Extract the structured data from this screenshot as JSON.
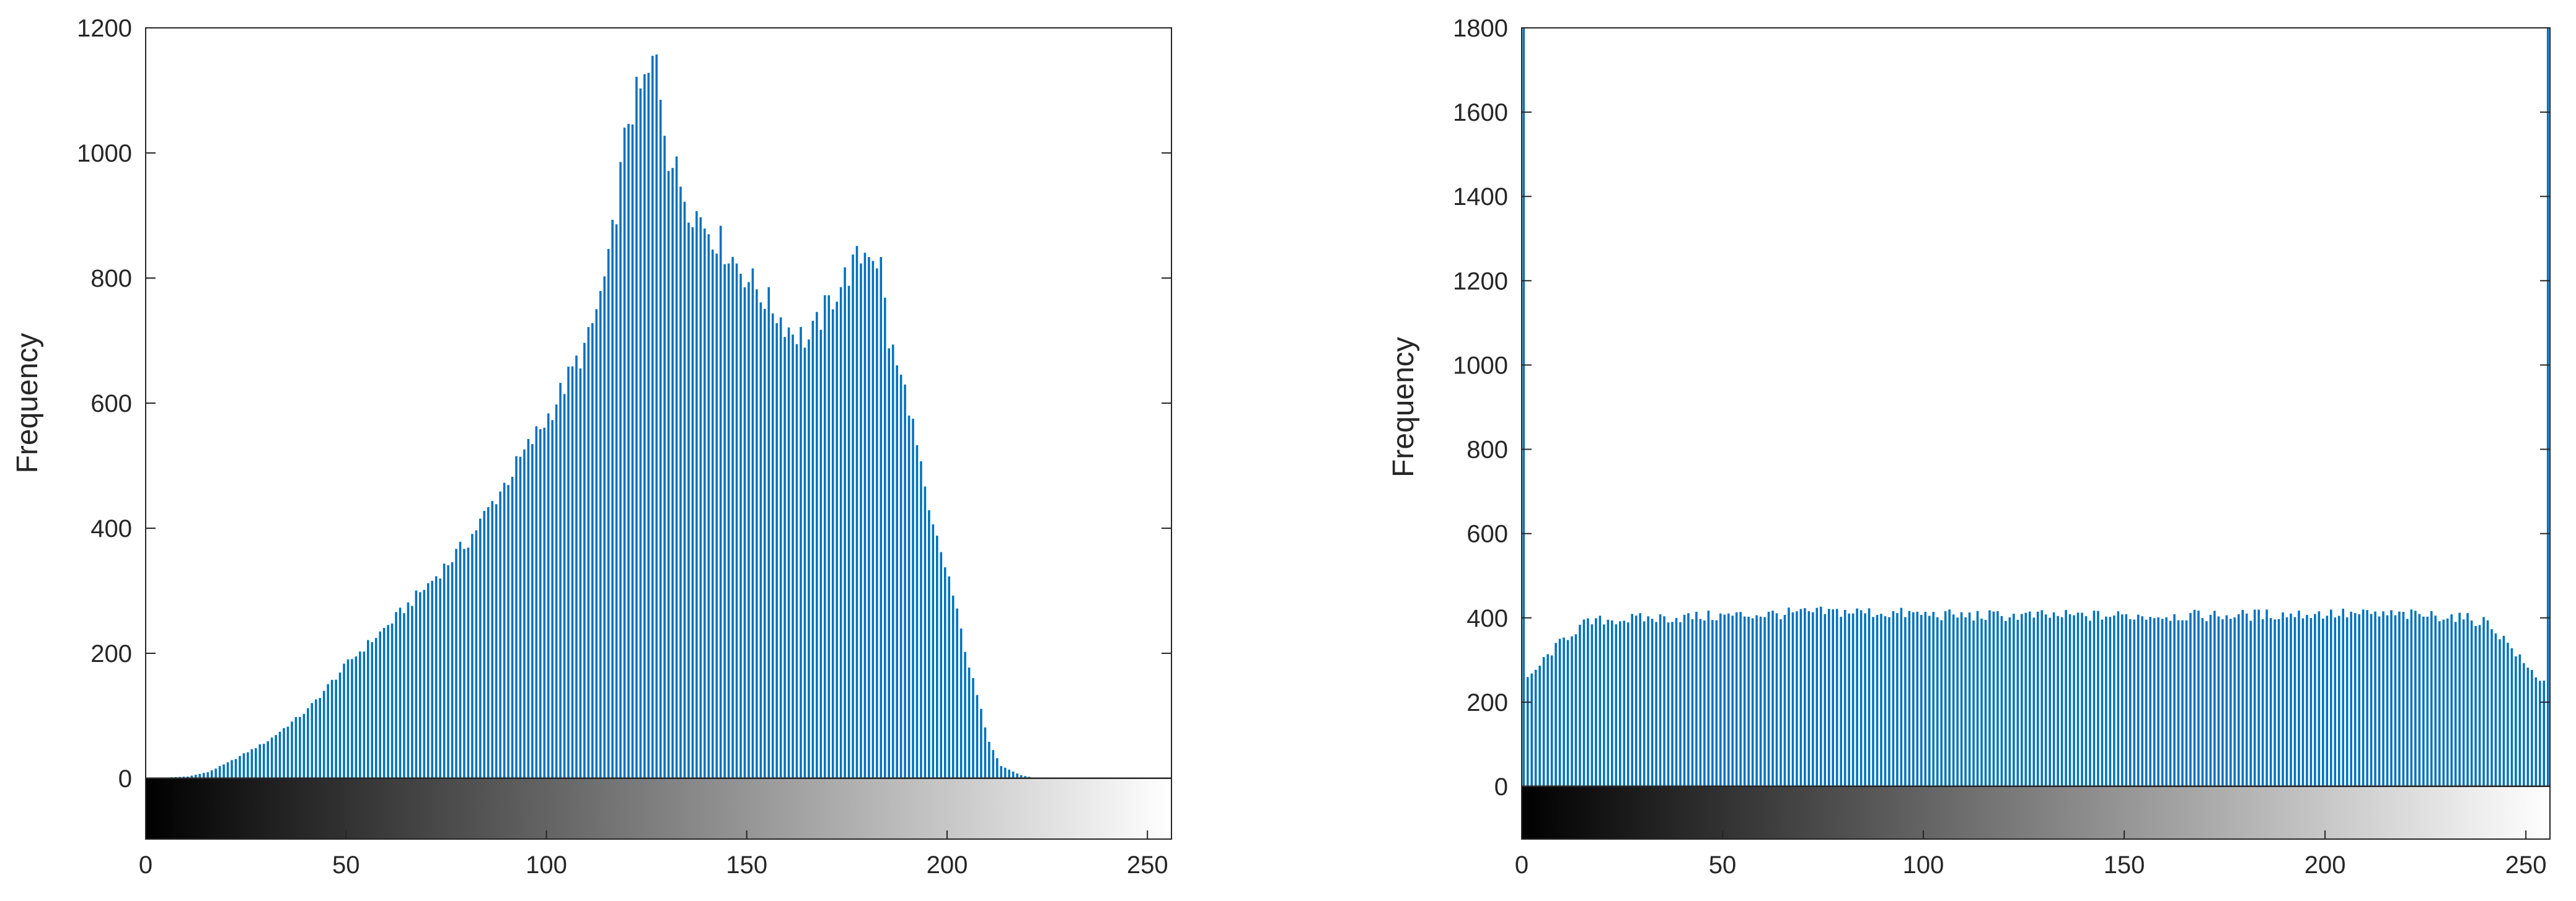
{
  "chart_data": [
    {
      "type": "bar",
      "title": "",
      "xlabel": "",
      "ylabel": "Frequency",
      "xlim": [
        0,
        255
      ],
      "ylim": [
        0,
        1200
      ],
      "yticks": [
        0,
        200,
        400,
        600,
        800,
        1000,
        1200
      ],
      "xticks": [
        0,
        50,
        100,
        150,
        200,
        250
      ],
      "bar_color": "#0072bd",
      "colorbar": "grayscale 0-255",
      "anchors": [
        [
          0,
          0
        ],
        [
          10,
          3
        ],
        [
          15,
          10
        ],
        [
          20,
          25
        ],
        [
          30,
          60
        ],
        [
          40,
          110
        ],
        [
          50,
          185
        ],
        [
          60,
          245
        ],
        [
          70,
          310
        ],
        [
          80,
          380
        ],
        [
          90,
          480
        ],
        [
          100,
          580
        ],
        [
          110,
          700
        ],
        [
          115,
          820
        ],
        [
          120,
          1060
        ],
        [
          125,
          1120
        ],
        [
          127,
          1150
        ],
        [
          130,
          1000
        ],
        [
          135,
          920
        ],
        [
          140,
          880
        ],
        [
          150,
          800
        ],
        [
          160,
          720
        ],
        [
          165,
          700
        ],
        [
          170,
          760
        ],
        [
          175,
          810
        ],
        [
          180,
          850
        ],
        [
          183,
          820
        ],
        [
          185,
          700
        ],
        [
          190,
          600
        ],
        [
          195,
          420
        ],
        [
          200,
          320
        ],
        [
          205,
          180
        ],
        [
          210,
          60
        ],
        [
          213,
          20
        ],
        [
          218,
          5
        ],
        [
          222,
          0
        ],
        [
          255,
          0
        ]
      ],
      "peak": {
        "x": 127,
        "y": 1150
      }
    },
    {
      "type": "bar",
      "title": "",
      "xlabel": "",
      "ylabel": "Frequency",
      "xlim": [
        0,
        255
      ],
      "ylim": [
        0,
        1800
      ],
      "yticks": [
        0,
        200,
        400,
        600,
        800,
        1000,
        1200,
        1400,
        1600,
        1800
      ],
      "xticks": [
        0,
        50,
        100,
        150,
        200,
        250
      ],
      "bar_color": "#0072bd",
      "colorbar": "grayscale 0-255",
      "anchors": [
        [
          0,
          240
        ],
        [
          5,
          300
        ],
        [
          10,
          350
        ],
        [
          15,
          385
        ],
        [
          20,
          395
        ],
        [
          50,
          405
        ],
        [
          80,
          415
        ],
        [
          110,
          405
        ],
        [
          140,
          405
        ],
        [
          170,
          405
        ],
        [
          200,
          410
        ],
        [
          230,
          405
        ],
        [
          240,
          390
        ],
        [
          245,
          340
        ],
        [
          250,
          280
        ],
        [
          255,
          240
        ]
      ],
      "edge_spikes": [
        {
          "x": 0,
          "y": 1800
        },
        {
          "x": 255,
          "y": 1800
        }
      ]
    }
  ]
}
